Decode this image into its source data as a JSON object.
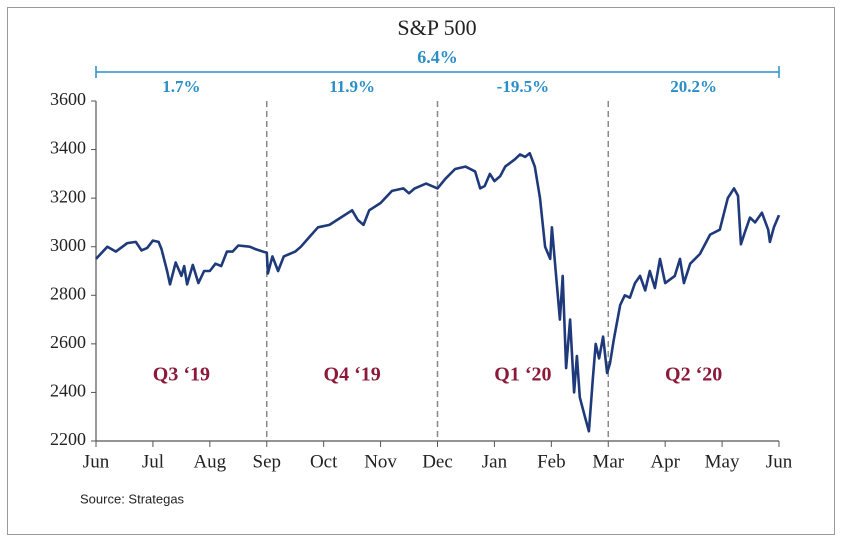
{
  "chart_data": {
    "type": "line",
    "title": "S&P 500",
    "source": "Source: Strategas",
    "overall_return": "6.4%",
    "quarters": [
      {
        "label": "Q3 ‘19",
        "return": "1.7%"
      },
      {
        "label": "Q4 ‘19",
        "return": "11.9%"
      },
      {
        "label": "Q1 ‘20",
        "return": "-19.5%"
      },
      {
        "label": "Q2 ‘20",
        "return": "20.2%"
      }
    ],
    "xlim": [
      0,
      12
    ],
    "xticks": [
      {
        "value": 0,
        "label": "Jun"
      },
      {
        "value": 1,
        "label": "Jul"
      },
      {
        "value": 2,
        "label": "Aug"
      },
      {
        "value": 3,
        "label": "Sep"
      },
      {
        "value": 4,
        "label": "Oct"
      },
      {
        "value": 5,
        "label": "Nov"
      },
      {
        "value": 6,
        "label": "Dec"
      },
      {
        "value": 7,
        "label": "Jan"
      },
      {
        "value": 8,
        "label": "Feb"
      },
      {
        "value": 9,
        "label": "Mar"
      },
      {
        "value": 10,
        "label": "Apr"
      },
      {
        "value": 11,
        "label": "May"
      },
      {
        "value": 12,
        "label": "Jun"
      }
    ],
    "ylim": [
      2200,
      3600
    ],
    "yticks": [
      2200,
      2400,
      2600,
      2800,
      3000,
      3200,
      3400,
      3600
    ],
    "series": [
      {
        "color": "#1f3a7a",
        "x": [
          0,
          0.2,
          0.35,
          0.55,
          0.7,
          0.8,
          0.9,
          1.0,
          1.1,
          1.15,
          1.25,
          1.3,
          1.4,
          1.5,
          1.55,
          1.6,
          1.7,
          1.8,
          1.9,
          2.0,
          2.1,
          2.2,
          2.3,
          2.4,
          2.5,
          2.7,
          2.8,
          3.0,
          3.02,
          3.1,
          3.2,
          3.3,
          3.5,
          3.6,
          3.75,
          3.9,
          4.1,
          4.3,
          4.5,
          4.6,
          4.7,
          4.8,
          5.0,
          5.2,
          5.4,
          5.5,
          5.6,
          5.8,
          6.0,
          6.14,
          6.31,
          6.49,
          6.66,
          6.75,
          6.83,
          6.92,
          7.0,
          7.1,
          7.19,
          7.36,
          7.45,
          7.54,
          7.62,
          7.71,
          7.8,
          7.89,
          7.98,
          8.01,
          8.15,
          8.2,
          8.26,
          8.33,
          8.4,
          8.45,
          8.5,
          8.59,
          8.66,
          8.73,
          8.78,
          8.84,
          8.91,
          8.98,
          9.03,
          9.1,
          9.21,
          9.29,
          9.38,
          9.47,
          9.56,
          9.65,
          9.73,
          9.82,
          9.91,
          10.0,
          10.17,
          10.26,
          10.33,
          10.44,
          10.61,
          10.79,
          10.96,
          11.1,
          11.21,
          11.28,
          11.33,
          11.4,
          11.49,
          11.58,
          11.7,
          11.81,
          11.84,
          11.91,
          12.0
        ],
        "values": [
          2950,
          3000,
          2980,
          3015,
          3020,
          2985,
          2995,
          3025,
          3020,
          2990,
          2900,
          2845,
          2935,
          2880,
          2920,
          2845,
          2925,
          2850,
          2900,
          2900,
          2930,
          2920,
          2980,
          2980,
          3005,
          3000,
          2990,
          2975,
          2890,
          2960,
          2900,
          2960,
          2980,
          3000,
          3040,
          3080,
          3090,
          3120,
          3150,
          3110,
          3090,
          3150,
          3180,
          3230,
          3240,
          3220,
          3240,
          3260,
          3240,
          3280,
          3320,
          3330,
          3310,
          3240,
          3250,
          3300,
          3270,
          3290,
          3330,
          3360,
          3380,
          3370,
          3385,
          3330,
          3200,
          3000,
          2950,
          3080,
          2700,
          2880,
          2500,
          2700,
          2400,
          2550,
          2380,
          2300,
          2240,
          2460,
          2600,
          2540,
          2630,
          2480,
          2520,
          2620,
          2760,
          2800,
          2790,
          2850,
          2880,
          2820,
          2900,
          2830,
          2950,
          2850,
          2880,
          2950,
          2850,
          2930,
          2970,
          3050,
          3070,
          3200,
          3240,
          3210,
          3010,
          3060,
          3120,
          3100,
          3140,
          3070,
          3020,
          3080,
          3130
        ]
      }
    ]
  }
}
